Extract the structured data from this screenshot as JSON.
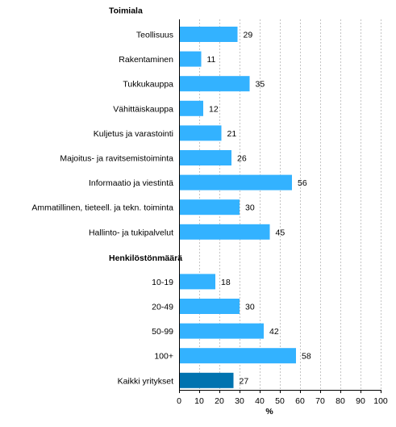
{
  "chart_data": {
    "type": "bar",
    "orientation": "horizontal",
    "xlabel": "%",
    "xlim": [
      0,
      100
    ],
    "xticks": [
      0,
      10,
      20,
      30,
      40,
      50,
      60,
      70,
      80,
      90,
      100
    ],
    "grid": "vertical-dashed",
    "colors": {
      "bar": "#33b2ff",
      "highlight": "#0073b0"
    },
    "groups": [
      {
        "label": "Toimiala",
        "items": [
          {
            "label": "Teollisuus",
            "value": 29
          },
          {
            "label": "Rakentaminen",
            "value": 11
          },
          {
            "label": "Tukkukauppa",
            "value": 35
          },
          {
            "label": "Vähittäiskauppa",
            "value": 12
          },
          {
            "label": "Kuljetus ja varastointi",
            "value": 21
          },
          {
            "label": "Majoitus- ja ravitsemistoiminta",
            "value": 26
          },
          {
            "label": "Informaatio ja viestintä",
            "value": 56
          },
          {
            "label": "Ammatillinen, tieteell. ja tekn. toiminta",
            "value": 30
          },
          {
            "label": "Hallinto- ja tukipalvelut",
            "value": 45
          }
        ]
      },
      {
        "label": "Henkilöstönmäärä",
        "items": [
          {
            "label": "10-19",
            "value": 18
          },
          {
            "label": "20-49",
            "value": 30
          },
          {
            "label": "50-99",
            "value": 42
          },
          {
            "label": "100+",
            "value": 58
          }
        ]
      },
      {
        "label": "",
        "items": [
          {
            "label": "Kaikki yritykset",
            "value": 27,
            "highlight": true
          }
        ]
      }
    ]
  }
}
